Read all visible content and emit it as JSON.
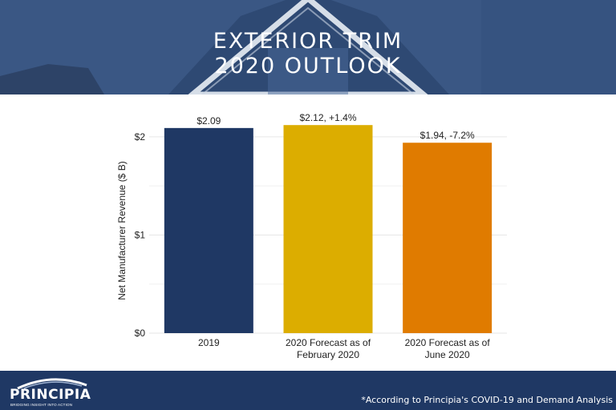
{
  "header": {
    "title_line1": "EXTERIOR TRIM",
    "title_line2": "2020 OUTLOOK"
  },
  "footer": {
    "logo_name": "PRINCIPIA",
    "logo_tagline": "BRIDGING INSIGHT INTO ACTION",
    "footnote": "*According to Principia's COVID-19 and Demand Analysis"
  },
  "colors": {
    "header_bg": "#34507d",
    "footer_bg": "#1f3864",
    "bar_2019": "#1f3864",
    "bar_feb": "#dcad00",
    "bar_june": "#e07b00"
  },
  "chart_data": {
    "type": "bar",
    "title": "",
    "xlabel": "",
    "ylabel": "Net Manufacturer Revenue ($ B)",
    "ylim": [
      0,
      2.35
    ],
    "yticks": [
      {
        "value": 0,
        "label": "$0"
      },
      {
        "value": 1,
        "label": "$1"
      },
      {
        "value": 2,
        "label": "$2"
      }
    ],
    "grid": true,
    "categories": [
      [
        "2019"
      ],
      [
        "2020 Forecast as of",
        "February 2020"
      ],
      [
        "2020 Forecast as of",
        "June 2020"
      ]
    ],
    "values": [
      2.09,
      2.12,
      1.94
    ],
    "data_labels": [
      "$2.09",
      "$2.12, +1.4%",
      "$1.94, -7.2%"
    ],
    "bar_colors": [
      "#1f3864",
      "#dcad00",
      "#e07b00"
    ]
  }
}
